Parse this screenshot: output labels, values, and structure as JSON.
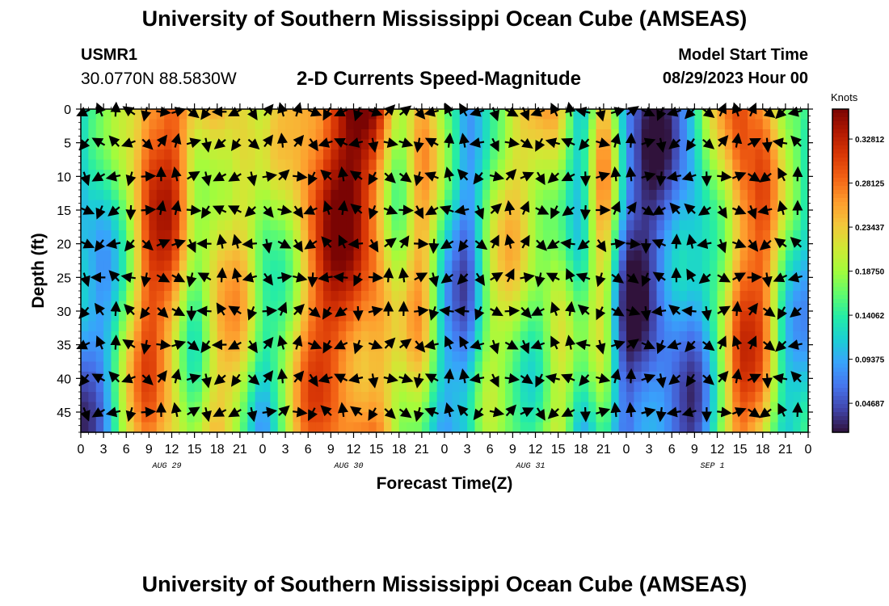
{
  "header": {
    "title": "University of Southern Mississippi Ocean Cube (AMSEAS)",
    "station_name": "USMR1",
    "station_coords": "30.0770N  88.5830W",
    "plot_title": "2-D Currents Speed-Magnitude",
    "model_start_label": "Model Start Time",
    "model_start_value": "08/29/2023 Hour 00"
  },
  "footer": {
    "title": "University of Southern Mississippi Ocean Cube (AMSEAS)"
  },
  "chart_data": {
    "type": "heatmap",
    "title": "2-D Currents Speed-Magnitude",
    "xlabel": "Forecast Time(Z)",
    "ylabel": "Depth (ft)",
    "x_ticks": [
      "0",
      "3",
      "6",
      "9",
      "12",
      "15",
      "18",
      "21",
      "0",
      "3",
      "6",
      "9",
      "12",
      "15",
      "18",
      "21",
      "0",
      "3",
      "6",
      "9",
      "12",
      "15",
      "18",
      "21",
      "0",
      "3",
      "6",
      "9",
      "12",
      "15",
      "18",
      "21",
      "0"
    ],
    "date_labels": [
      {
        "label": "AUG 29",
        "hour": 12
      },
      {
        "label": "AUG 30",
        "hour": 36
      },
      {
        "label": "AUG 31",
        "hour": 60
      },
      {
        "label": "SEP 1",
        "hour": 84
      }
    ],
    "xlim": [
      0,
      96
    ],
    "ylim": [
      0,
      48
    ],
    "y_ticks": [
      "0",
      "5",
      "10",
      "15",
      "20",
      "25",
      "30",
      "35",
      "40",
      "45"
    ],
    "colorbar": {
      "unit": "Knots",
      "min": 0.016,
      "max": 0.36,
      "ticks": [
        "0.04687",
        "0.09375",
        "0.14062",
        "0.18750",
        "0.23437",
        "0.28125",
        "0.32812"
      ],
      "colors": [
        "#30123b",
        "#4145ab",
        "#4675ed",
        "#39a2fc",
        "#1bcfd4",
        "#24eca6",
        "#61fc6c",
        "#a4fc3b",
        "#d1e834",
        "#f3c63a",
        "#fe9b2d",
        "#f36315",
        "#d93806",
        "#b11901",
        "#7a0403"
      ]
    },
    "speed_profile_hours": [
      0,
      3,
      6,
      9,
      12,
      15,
      18,
      21,
      24,
      27,
      30,
      33,
      36,
      39,
      42,
      45,
      48,
      51,
      54,
      57,
      60,
      63,
      66,
      69,
      72,
      75,
      78,
      81,
      84,
      87,
      90,
      93,
      96
    ],
    "speed_profile_knots": [
      0.09,
      0.12,
      0.22,
      0.32,
      0.3,
      0.2,
      0.26,
      0.24,
      0.16,
      0.22,
      0.3,
      0.34,
      0.35,
      0.32,
      0.2,
      0.26,
      0.14,
      0.09,
      0.2,
      0.22,
      0.2,
      0.24,
      0.12,
      0.25,
      0.06,
      0.05,
      0.07,
      0.09,
      0.2,
      0.32,
      0.3,
      0.16,
      0.14
    ],
    "note": "Heatmap of current speed (knots) versus depth (ft) and forecast time (hours since 08/29/2023 00Z), overlaid with direction arrows."
  }
}
